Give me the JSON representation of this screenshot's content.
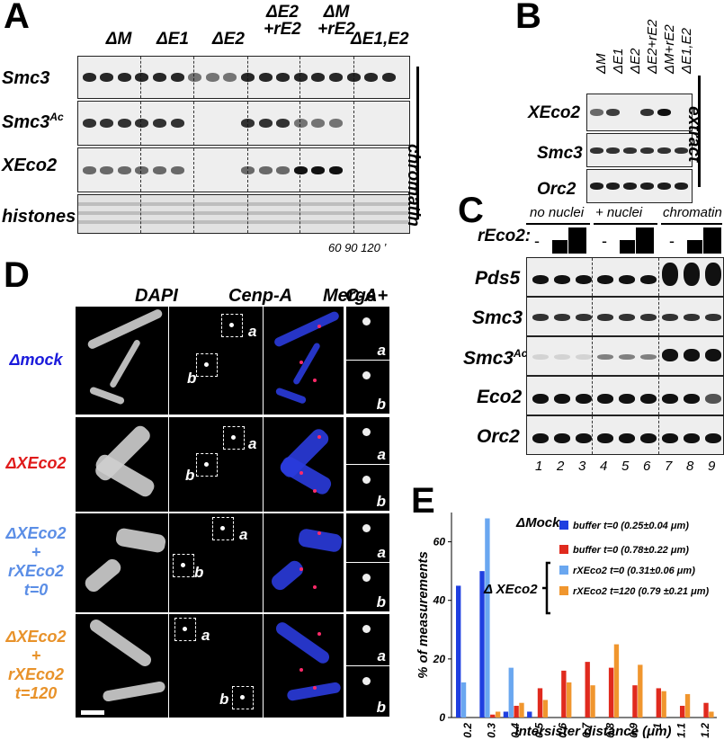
{
  "panelA": {
    "label": "A",
    "lanes": [
      {
        "l1": "ΔM",
        "l2": ""
      },
      {
        "l1": "ΔE1",
        "l2": ""
      },
      {
        "l1": "ΔE2",
        "l2": ""
      },
      {
        "l1": "ΔE2",
        "l2": "+rE2"
      },
      {
        "l1": "ΔM",
        "l2": "+rE2"
      },
      {
        "l1": "ΔE1,E2",
        "l2": ""
      }
    ],
    "rows": [
      "Smc3",
      "Smc3",
      "XEco2",
      "histones"
    ],
    "row2_sup": "Ac",
    "side_label": "chromatin",
    "time_label": "60 90 120 ’"
  },
  "panelB": {
    "label": "B",
    "lanes": [
      "ΔM",
      "ΔE1",
      "ΔE2",
      "ΔE2+rE2",
      "ΔM+rE2",
      "ΔE1,E2"
    ],
    "rows": [
      "XEco2",
      "Smc3",
      "Orc2"
    ],
    "side_label": "extract"
  },
  "panelC": {
    "label": "C",
    "groups": [
      "no nuclei",
      "+ nuclei",
      "chromatin"
    ],
    "reco2_label": "rEco2:",
    "dash": "-",
    "rows": [
      "Pds5",
      "Smc3",
      "Smc3",
      "Eco2",
      "Orc2"
    ],
    "row3_sup": "Ac",
    "lane_numbers": [
      "1",
      "2",
      "3",
      "4",
      "5",
      "6",
      "7",
      "8",
      "9"
    ]
  },
  "panelD": {
    "label": "D",
    "columns": [
      "DAPI",
      "Cenp-A",
      "Merge",
      "C-A+"
    ],
    "rows": [
      {
        "lines": [
          "ΔXEco2"
        ],
        "color": "#1a1adb"
      },
      {
        "lines": [
          "ΔXEco2"
        ],
        "color": "#e01b1b"
      },
      {
        "lines": [
          "ΔXEco2",
          "+",
          "rXEco2",
          "t=0"
        ],
        "color": "#5b8ee6"
      },
      {
        "lines": [
          "ΔXEco2",
          "+",
          "rXEco2",
          "t=120"
        ],
        "color": "#e8922a"
      }
    ],
    "row1_text": "Δmock",
    "sub_a": "a",
    "sub_b": "b"
  },
  "panelE": {
    "label": "E",
    "chart_data": {
      "type": "bar",
      "ylabel": "% of measurements",
      "xlabel": "Intersister distance (μm)",
      "categories": [
        "0.2",
        "0.3",
        "0.4",
        "0.5",
        "0.6",
        "0.7",
        "0.8",
        "0.9",
        "1",
        "1.1",
        "1.2"
      ],
      "ylim": [
        0,
        70
      ],
      "yticks": [
        "0",
        "20",
        "40",
        "60"
      ],
      "series": [
        {
          "name": "buffer t=0 (0.25±0.04 μm)",
          "color": "#1f3fe0",
          "values": [
            45,
            50,
            2,
            2,
            0,
            0,
            0,
            0,
            0,
            0,
            0
          ]
        },
        {
          "name": "rXEco2 t=0 (0.31±0.06 μm)",
          "color": "#6aa7f0",
          "values": [
            12,
            68,
            17,
            0,
            0,
            0,
            0,
            0,
            0,
            0,
            0
          ]
        },
        {
          "name": "buffer t=0 (0.78±0.22 μm)",
          "color": "#e02a1e",
          "values": [
            0,
            1,
            4,
            10,
            16,
            19,
            17,
            11,
            10,
            4,
            5
          ]
        },
        {
          "name": "rXEco2 t=120 (0.79 ±0.21 μm)",
          "color": "#f0962e",
          "values": [
            0,
            2,
            5,
            6,
            12,
            11,
            25,
            18,
            9,
            8,
            2
          ]
        }
      ],
      "legend_mock": "ΔMock",
      "legend_xeco2": "Δ XEco2"
    }
  }
}
